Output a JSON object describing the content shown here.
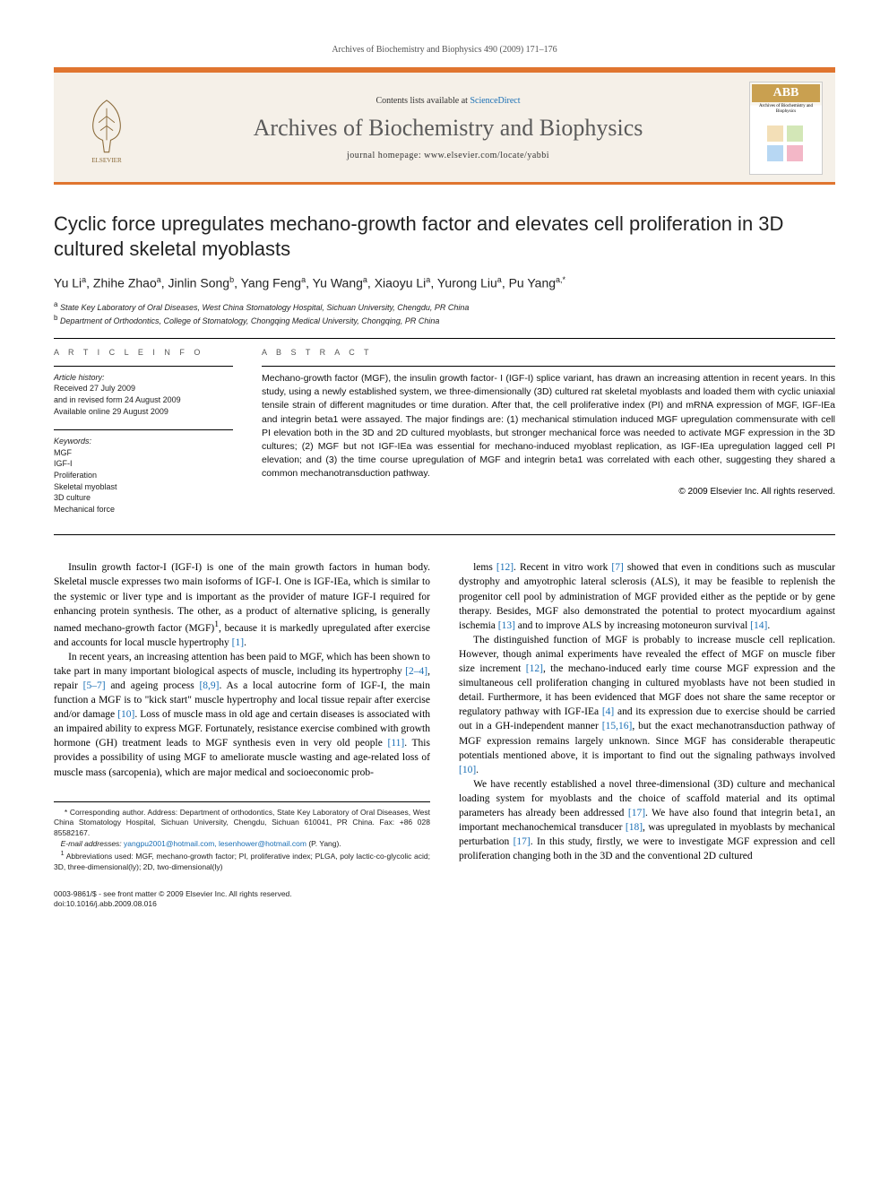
{
  "running_header": "Archives of Biochemistry and Biophysics 490 (2009) 171–176",
  "masthead": {
    "contents_prefix": "Contents lists available at ",
    "contents_link": "ScienceDirect",
    "journal_name": "Archives of Biochemistry and Biophysics",
    "homepage_line": "journal homepage: www.elsevier.com/locate/yabbi",
    "cover_abb": "ABB",
    "cover_journal": "Archives of Biochemistry and Biophysics",
    "publisher_name": "ELSEVIER"
  },
  "colors": {
    "accent": "#e0752f",
    "link": "#1a6fb5",
    "masthead_bg": "#f5f0e8"
  },
  "article": {
    "title": "Cyclic force upregulates mechano-growth factor and elevates cell proliferation in 3D cultured skeletal myoblasts",
    "authors_html": "Yu Li<sup>a</sup>, Zhihe Zhao<sup>a</sup>, Jinlin Song<sup>b</sup>, Yang Feng<sup>a</sup>, Yu Wang<sup>a</sup>, Xiaoyu Li<sup>a</sup>, Yurong Liu<sup>a</sup>, Pu Yang<sup>a,*</sup>",
    "affiliations": [
      "<sup>a</sup> State Key Laboratory of Oral Diseases, West China Stomatology Hospital, Sichuan University, Chengdu, PR China",
      "<sup>b</sup> Department of Orthodontics, College of Stomatology, Chongqing Medical University, Chongqing, PR China"
    ]
  },
  "info": {
    "section_label": "A R T I C L E   I N F O",
    "history_label": "Article history:",
    "history_lines": [
      "Received 27 July 2009",
      "and in revised form 24 August 2009",
      "Available online 29 August 2009"
    ],
    "keywords_label": "Keywords:",
    "keywords": [
      "MGF",
      "IGF-I",
      "Proliferation",
      "Skeletal myoblast",
      "3D culture",
      "Mechanical force"
    ]
  },
  "abstract": {
    "section_label": "A B S T R A C T",
    "text": "Mechano-growth factor (MGF), the insulin growth factor- I (IGF-I) splice variant, has drawn an increasing attention in recent years. In this study, using a newly established system, we three-dimensionally (3D) cultured rat skeletal myoblasts and loaded them with cyclic uniaxial tensile strain of different magnitudes or time duration. After that, the cell proliferative index (PI) and mRNA expression of MGF, IGF-IEa and integrin beta1 were assayed. The major findings are: (1) mechanical stimulation induced MGF upregulation commensurate with cell PI elevation both in the 3D and 2D cultured myoblasts, but stronger mechanical force was needed to activate MGF expression in the 3D cultures; (2) MGF but not IGF-IEa was essential for mechano-induced myoblast replication, as IGF-IEa upregulation lagged cell PI elevation; and (3) the time course upregulation of MGF and integrin beta1 was correlated with each other, suggesting they shared a common mechanotransduction pathway.",
    "copyright": "© 2009 Elsevier Inc. All rights reserved."
  },
  "body": {
    "left": [
      "Insulin growth factor-I (IGF-I) is one of the main growth factors in human body. Skeletal muscle expresses two main isoforms of IGF-I. One is IGF-IEa, which is similar to the systemic or liver type and is important as the provider of mature IGF-I required for enhancing protein synthesis. The other, as a product of alternative splicing, is generally named mechano-growth factor (MGF)<sup>1</sup>, because it is markedly upregulated after exercise and accounts for local muscle hypertrophy <span class=\"ref\">[1]</span>.",
      "In recent years, an increasing attention has been paid to MGF, which has been shown to take part in many important biological aspects of muscle, including its hypertrophy <span class=\"ref\">[2–4]</span>, repair <span class=\"ref\">[5–7]</span> and ageing process <span class=\"ref\">[8,9]</span>. As a local autocrine form of IGF-I, the main function a MGF is to \"kick start\" muscle hypertrophy and local tissue repair after exercise and/or damage <span class=\"ref\">[10]</span>. Loss of muscle mass in old age and certain diseases is associated with an impaired ability to express MGF. Fortunately, resistance exercise combined with growth hormone (GH) treatment leads to MGF synthesis even in very old people <span class=\"ref\">[11]</span>. This provides a possibility of using MGF to ameliorate muscle wasting and age-related loss of muscle mass (sarcopenia), which are major medical and socioeconomic prob-"
    ],
    "right": [
      "lems <span class=\"ref\">[12]</span>. Recent in vitro work <span class=\"ref\">[7]</span> showed that even in conditions such as muscular dystrophy and amyotrophic lateral sclerosis (ALS), it may be feasible to replenish the progenitor cell pool by administration of MGF provided either as the peptide or by gene therapy. Besides, MGF also demonstrated the potential to protect myocardium against ischemia <span class=\"ref\">[13]</span> and to improve ALS by increasing motoneuron survival <span class=\"ref\">[14]</span>.",
      "The distinguished function of MGF is probably to increase muscle cell replication. However, though animal experiments have revealed the effect of MGF on muscle fiber size increment <span class=\"ref\">[12]</span>, the mechano-induced early time course MGF expression and the simultaneous cell proliferation changing in cultured myoblasts have not been studied in detail. Furthermore, it has been evidenced that MGF does not share the same receptor or regulatory pathway with IGF-IEa <span class=\"ref\">[4]</span> and its expression due to exercise should be carried out in a GH-independent manner <span class=\"ref\">[15,16]</span>, but the exact mechanotransduction pathway of MGF expression remains largely unknown. Since MGF has considerable therapeutic potentials mentioned above, it is important to find out the signaling pathways involved <span class=\"ref\">[10]</span>.",
      "We have recently established a novel three-dimensional (3D) culture and mechanical loading system for myoblasts and the choice of scaffold material and its optimal parameters has already been addressed <span class=\"ref\">[17]</span>. We have also found that integrin beta1, an important mechanochemical transducer <span class=\"ref\">[18]</span>, was upregulated in myoblasts by mechanical perturbation <span class=\"ref\">[17]</span>. In this study, firstly, we were to investigate MGF expression and cell proliferation changing both in the 3D and the conventional 2D cultured"
    ]
  },
  "footnotes": {
    "corresponding": "* Corresponding author. Address: Department of orthodontics, State Key Laboratory of Oral Diseases, West China Stomatology Hospital, Sichuan University, Chengdu, Sichuan 610041, PR China. Fax: +86 028 85582167.",
    "email_label": "E-mail addresses:",
    "emails": "yangpu2001@hotmail.com, lesenhower@hotmail.com",
    "email_owner": "(P. Yang).",
    "abbrev": "<sup>1</sup> Abbreviations used: MGF, mechano-growth factor; PI, proliferative index; PLGA, poly lactic-co-glycolic acid; 3D, three-dimensional(ly); 2D, two-dimensional(ly)"
  },
  "footer": {
    "line1": "0003-9861/$ - see front matter © 2009 Elsevier Inc. All rights reserved.",
    "line2": "doi:10.1016/j.abb.2009.08.016"
  }
}
